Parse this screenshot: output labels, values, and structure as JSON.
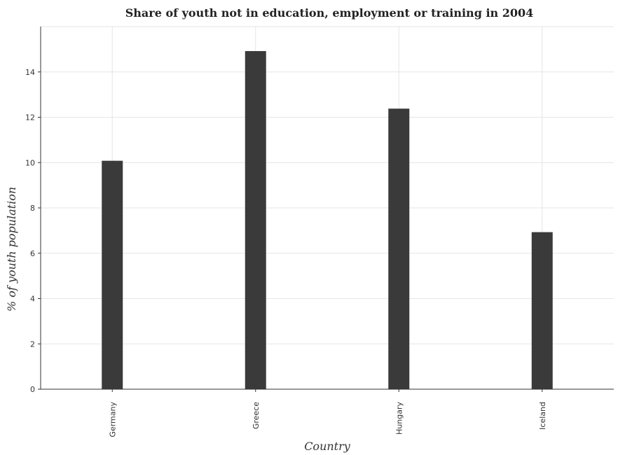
{
  "chart_data": {
    "type": "bar",
    "title": "Share of youth not in education, employment or training in 2004",
    "xlabel": "Country",
    "ylabel": "% of youth population",
    "categories": [
      "Germany",
      "Greece",
      "Hungary",
      "Iceland"
    ],
    "values": [
      10.08,
      14.92,
      12.38,
      6.93
    ],
    "ylim": [
      0,
      16
    ],
    "yticks": [
      0,
      2,
      4,
      6,
      8,
      10,
      12,
      14
    ],
    "grid": true,
    "bar_color": "#3a3a3a"
  }
}
